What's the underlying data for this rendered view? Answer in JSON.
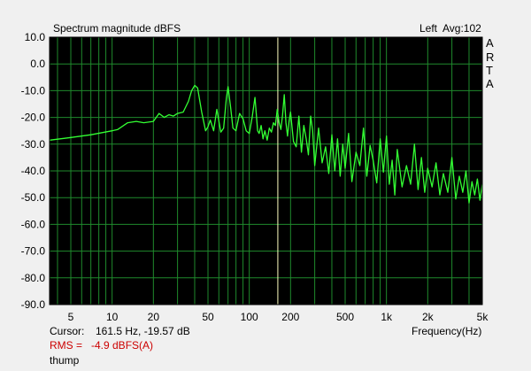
{
  "header": {
    "title": "Spectrum magnitude dBFS",
    "channel": "Left",
    "averaging": "Avg:102",
    "brand": [
      "A",
      "R",
      "T",
      "A"
    ]
  },
  "footer": {
    "cursor_label": "Cursor:",
    "cursor_value": "161.5 Hz, -19.57 dB",
    "rms_label": "RMS =",
    "rms_value": "-4.9 dBFS(A)",
    "name": "thump"
  },
  "colors": {
    "plot_bg": "#000000",
    "grid": "#1f8a2c",
    "trace": "#33ff33",
    "cursor": "#ffffc0",
    "rms_text": "#cc0000"
  },
  "chart_data": {
    "type": "line",
    "title": "Spectrum magnitude dBFS",
    "xlabel": "Frequency(Hz)",
    "ylabel": "",
    "xscale": "log",
    "xlim": [
      3.5,
      5000
    ],
    "ylim": [
      -90,
      10
    ],
    "grid": true,
    "x_ticks": [
      {
        "v": 5,
        "label": "5"
      },
      {
        "v": 10,
        "label": "10"
      },
      {
        "v": 20,
        "label": "20"
      },
      {
        "v": 50,
        "label": "50"
      },
      {
        "v": 100,
        "label": "100"
      },
      {
        "v": 200,
        "label": "200"
      },
      {
        "v": 500,
        "label": "500"
      },
      {
        "v": 1000,
        "label": "1k"
      },
      {
        "v": 2000,
        "label": "2k"
      },
      {
        "v": 5000,
        "label": "5k"
      }
    ],
    "y_ticks": [
      {
        "v": 10,
        "label": "10.0"
      },
      {
        "v": 0,
        "label": "0.0"
      },
      {
        "v": -10,
        "label": "-10.0"
      },
      {
        "v": -20,
        "label": "-20.0"
      },
      {
        "v": -30,
        "label": "-30.0"
      },
      {
        "v": -40,
        "label": "-40.0"
      },
      {
        "v": -50,
        "label": "-50.0"
      },
      {
        "v": -60,
        "label": "-60.0"
      },
      {
        "v": -70,
        "label": "-70.0"
      },
      {
        "v": -80,
        "label": "-80.0"
      },
      {
        "v": -90,
        "label": "-90.0"
      }
    ],
    "cursor_x": 161.5,
    "series": [
      {
        "x": [
          3.5,
          5,
          7,
          10,
          11,
          13,
          15,
          17,
          20,
          22,
          24,
          26,
          28,
          30,
          33,
          36,
          38,
          40,
          42,
          45,
          48,
          50,
          52,
          55,
          58,
          62,
          65,
          68,
          70,
          73,
          76,
          80,
          85,
          90,
          95,
          100,
          105,
          110,
          115,
          118,
          122,
          126,
          130,
          135,
          140,
          145,
          150,
          155,
          160,
          165,
          170,
          175,
          180,
          185,
          190,
          195,
          200,
          210,
          220,
          230,
          240,
          250,
          260,
          270,
          280,
          290,
          300,
          320,
          340,
          360,
          380,
          400,
          420,
          440,
          460,
          480,
          500,
          530,
          560,
          600,
          640,
          680,
          720,
          760,
          800,
          850,
          900,
          950,
          1000,
          1050,
          1100,
          1150,
          1200,
          1300,
          1400,
          1500,
          1600,
          1700,
          1800,
          1900,
          2000,
          2150,
          2300,
          2450,
          2600,
          2800,
          3000,
          3200,
          3400,
          3600,
          3800,
          4000,
          4200,
          4400,
          4600,
          4800,
          5000
        ],
        "y": [
          -28.5,
          -27.5,
          -26.5,
          -25,
          -24.5,
          -22,
          -21.5,
          -22,
          -21.5,
          -18.5,
          -20,
          -19,
          -19.5,
          -18.5,
          -18,
          -14,
          -10,
          -8,
          -9,
          -18,
          -25,
          -23.5,
          -21,
          -25,
          -17,
          -25.5,
          -24,
          -13,
          -8.5,
          -16,
          -24,
          -25,
          -18.5,
          -20.5,
          -25,
          -26,
          -20,
          -12.5,
          -25,
          -26,
          -23,
          -28,
          -25,
          -28.5,
          -24,
          -25.5,
          -22,
          -23,
          -17,
          -22,
          -24.5,
          -19,
          -11.5,
          -22,
          -27,
          -21.5,
          -18,
          -29,
          -31,
          -19.5,
          -33,
          -23,
          -28,
          -34,
          -19.5,
          -25,
          -38,
          -24,
          -37,
          -31,
          -41,
          -26.5,
          -40,
          -28,
          -42,
          -30,
          -39,
          -26,
          -44,
          -33,
          -38,
          -24,
          -42,
          -30.5,
          -36,
          -44.5,
          -28,
          -40.5,
          -27,
          -45,
          -36,
          -49,
          -32,
          -46,
          -38,
          -45,
          -30,
          -47,
          -35,
          -48,
          -39,
          -46,
          -37,
          -49,
          -41,
          -48,
          -35,
          -50.5,
          -42,
          -48,
          -40,
          -52,
          -44,
          -49,
          -43,
          -51,
          -45
        ]
      }
    ]
  }
}
